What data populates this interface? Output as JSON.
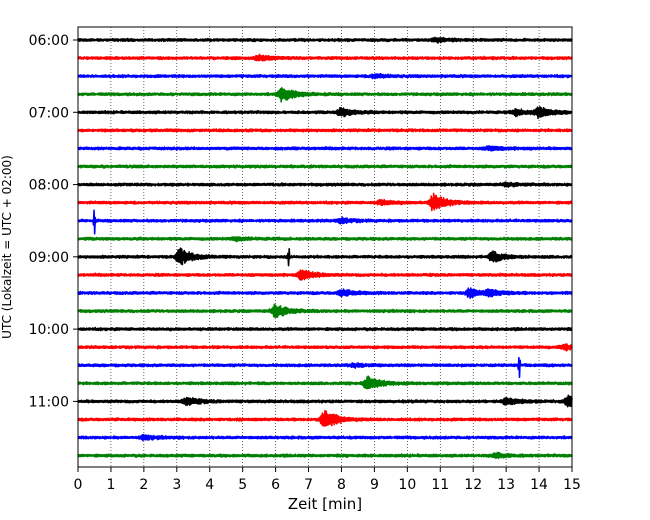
{
  "chart_data": {
    "type": "line",
    "title": "",
    "xlabel": "Zeit  [min]",
    "ylabel": "UTC (Lokalzeit = UTC + 02:00)",
    "xlim": [
      0,
      15
    ],
    "x_ticks": [
      "0",
      "1",
      "2",
      "3",
      "4",
      "5",
      "6",
      "7",
      "8",
      "9",
      "10",
      "11",
      "12",
      "13",
      "14",
      "15"
    ],
    "y_tick_labels": [
      "06:00",
      "07:00",
      "08:00",
      "09:00",
      "10:00",
      "11:00"
    ],
    "grid": {
      "x": "dotted",
      "y": "off"
    },
    "row_interval_minutes": 15,
    "colors": {
      "cycle": [
        "#000000",
        "#ff0000",
        "#0000ff",
        "#008000"
      ]
    },
    "traces": [
      {
        "time": "06:00",
        "color": "#000000",
        "events": [
          {
            "t": 10.9,
            "amp": 0.25
          }
        ]
      },
      {
        "time": "06:15",
        "color": "#ff0000",
        "events": [
          {
            "t": 5.5,
            "amp": 0.35
          }
        ]
      },
      {
        "time": "06:30",
        "color": "#0000ff",
        "events": [
          {
            "t": 9.0,
            "amp": 0.25
          }
        ]
      },
      {
        "time": "06:45",
        "color": "#008000",
        "events": [
          {
            "t": 6.2,
            "amp": 0.9
          }
        ]
      },
      {
        "time": "07:00",
        "color": "#000000",
        "events": [
          {
            "t": 8.0,
            "amp": 0.5
          },
          {
            "t": 14.0,
            "amp": 0.6
          },
          {
            "t": 13.3,
            "amp": 0.35
          }
        ]
      },
      {
        "time": "07:15",
        "color": "#ff0000",
        "events": []
      },
      {
        "time": "07:30",
        "color": "#0000ff",
        "events": [
          {
            "t": 12.5,
            "amp": 0.25
          }
        ]
      },
      {
        "time": "07:45",
        "color": "#008000",
        "events": []
      },
      {
        "time": "08:00",
        "color": "#000000",
        "events": [
          {
            "t": 13.0,
            "amp": 0.2
          }
        ]
      },
      {
        "time": "08:15",
        "color": "#ff0000",
        "events": [
          {
            "t": 10.8,
            "amp": 1.1
          },
          {
            "t": 9.2,
            "amp": 0.3
          }
        ]
      },
      {
        "time": "08:30",
        "color": "#0000ff",
        "events": [
          {
            "t": 0.5,
            "amp": 1.8,
            "spike": true
          },
          {
            "t": 8.0,
            "amp": 0.3
          }
        ]
      },
      {
        "time": "08:45",
        "color": "#008000",
        "events": [
          {
            "t": 4.8,
            "amp": 0.2
          }
        ]
      },
      {
        "time": "09:00",
        "color": "#000000",
        "events": [
          {
            "t": 3.1,
            "amp": 1.0
          },
          {
            "t": 6.4,
            "amp": 1.2,
            "spike": true
          },
          {
            "t": 12.6,
            "amp": 0.6
          }
        ]
      },
      {
        "time": "09:15",
        "color": "#ff0000",
        "events": [
          {
            "t": 6.8,
            "amp": 0.6
          }
        ]
      },
      {
        "time": "09:30",
        "color": "#0000ff",
        "events": [
          {
            "t": 8.0,
            "amp": 0.4
          },
          {
            "t": 11.9,
            "amp": 0.5
          },
          {
            "t": 12.5,
            "amp": 0.35
          }
        ]
      },
      {
        "time": "09:45",
        "color": "#008000",
        "events": [
          {
            "t": 6.0,
            "amp": 0.8
          }
        ]
      },
      {
        "time": "10:00",
        "color": "#000000",
        "events": []
      },
      {
        "time": "10:15",
        "color": "#ff0000",
        "events": [
          {
            "t": 14.8,
            "amp": 0.3
          }
        ]
      },
      {
        "time": "10:30",
        "color": "#0000ff",
        "events": [
          {
            "t": 13.4,
            "amp": 1.8,
            "spike": true
          },
          {
            "t": 8.4,
            "amp": 0.2
          }
        ]
      },
      {
        "time": "10:45",
        "color": "#008000",
        "events": [
          {
            "t": 8.8,
            "amp": 0.8
          }
        ]
      },
      {
        "time": "11:00",
        "color": "#000000",
        "events": [
          {
            "t": 3.3,
            "amp": 0.5
          },
          {
            "t": 13.0,
            "amp": 0.45
          },
          {
            "t": 14.9,
            "amp": 0.7
          }
        ]
      },
      {
        "time": "11:15",
        "color": "#ff0000",
        "events": [
          {
            "t": 7.5,
            "amp": 1.2
          }
        ]
      },
      {
        "time": "11:30",
        "color": "#0000ff",
        "events": [
          {
            "t": 2.0,
            "amp": 0.25
          }
        ]
      },
      {
        "time": "11:45",
        "color": "#008000",
        "events": [
          {
            "t": 12.7,
            "amp": 0.3
          }
        ]
      }
    ]
  }
}
